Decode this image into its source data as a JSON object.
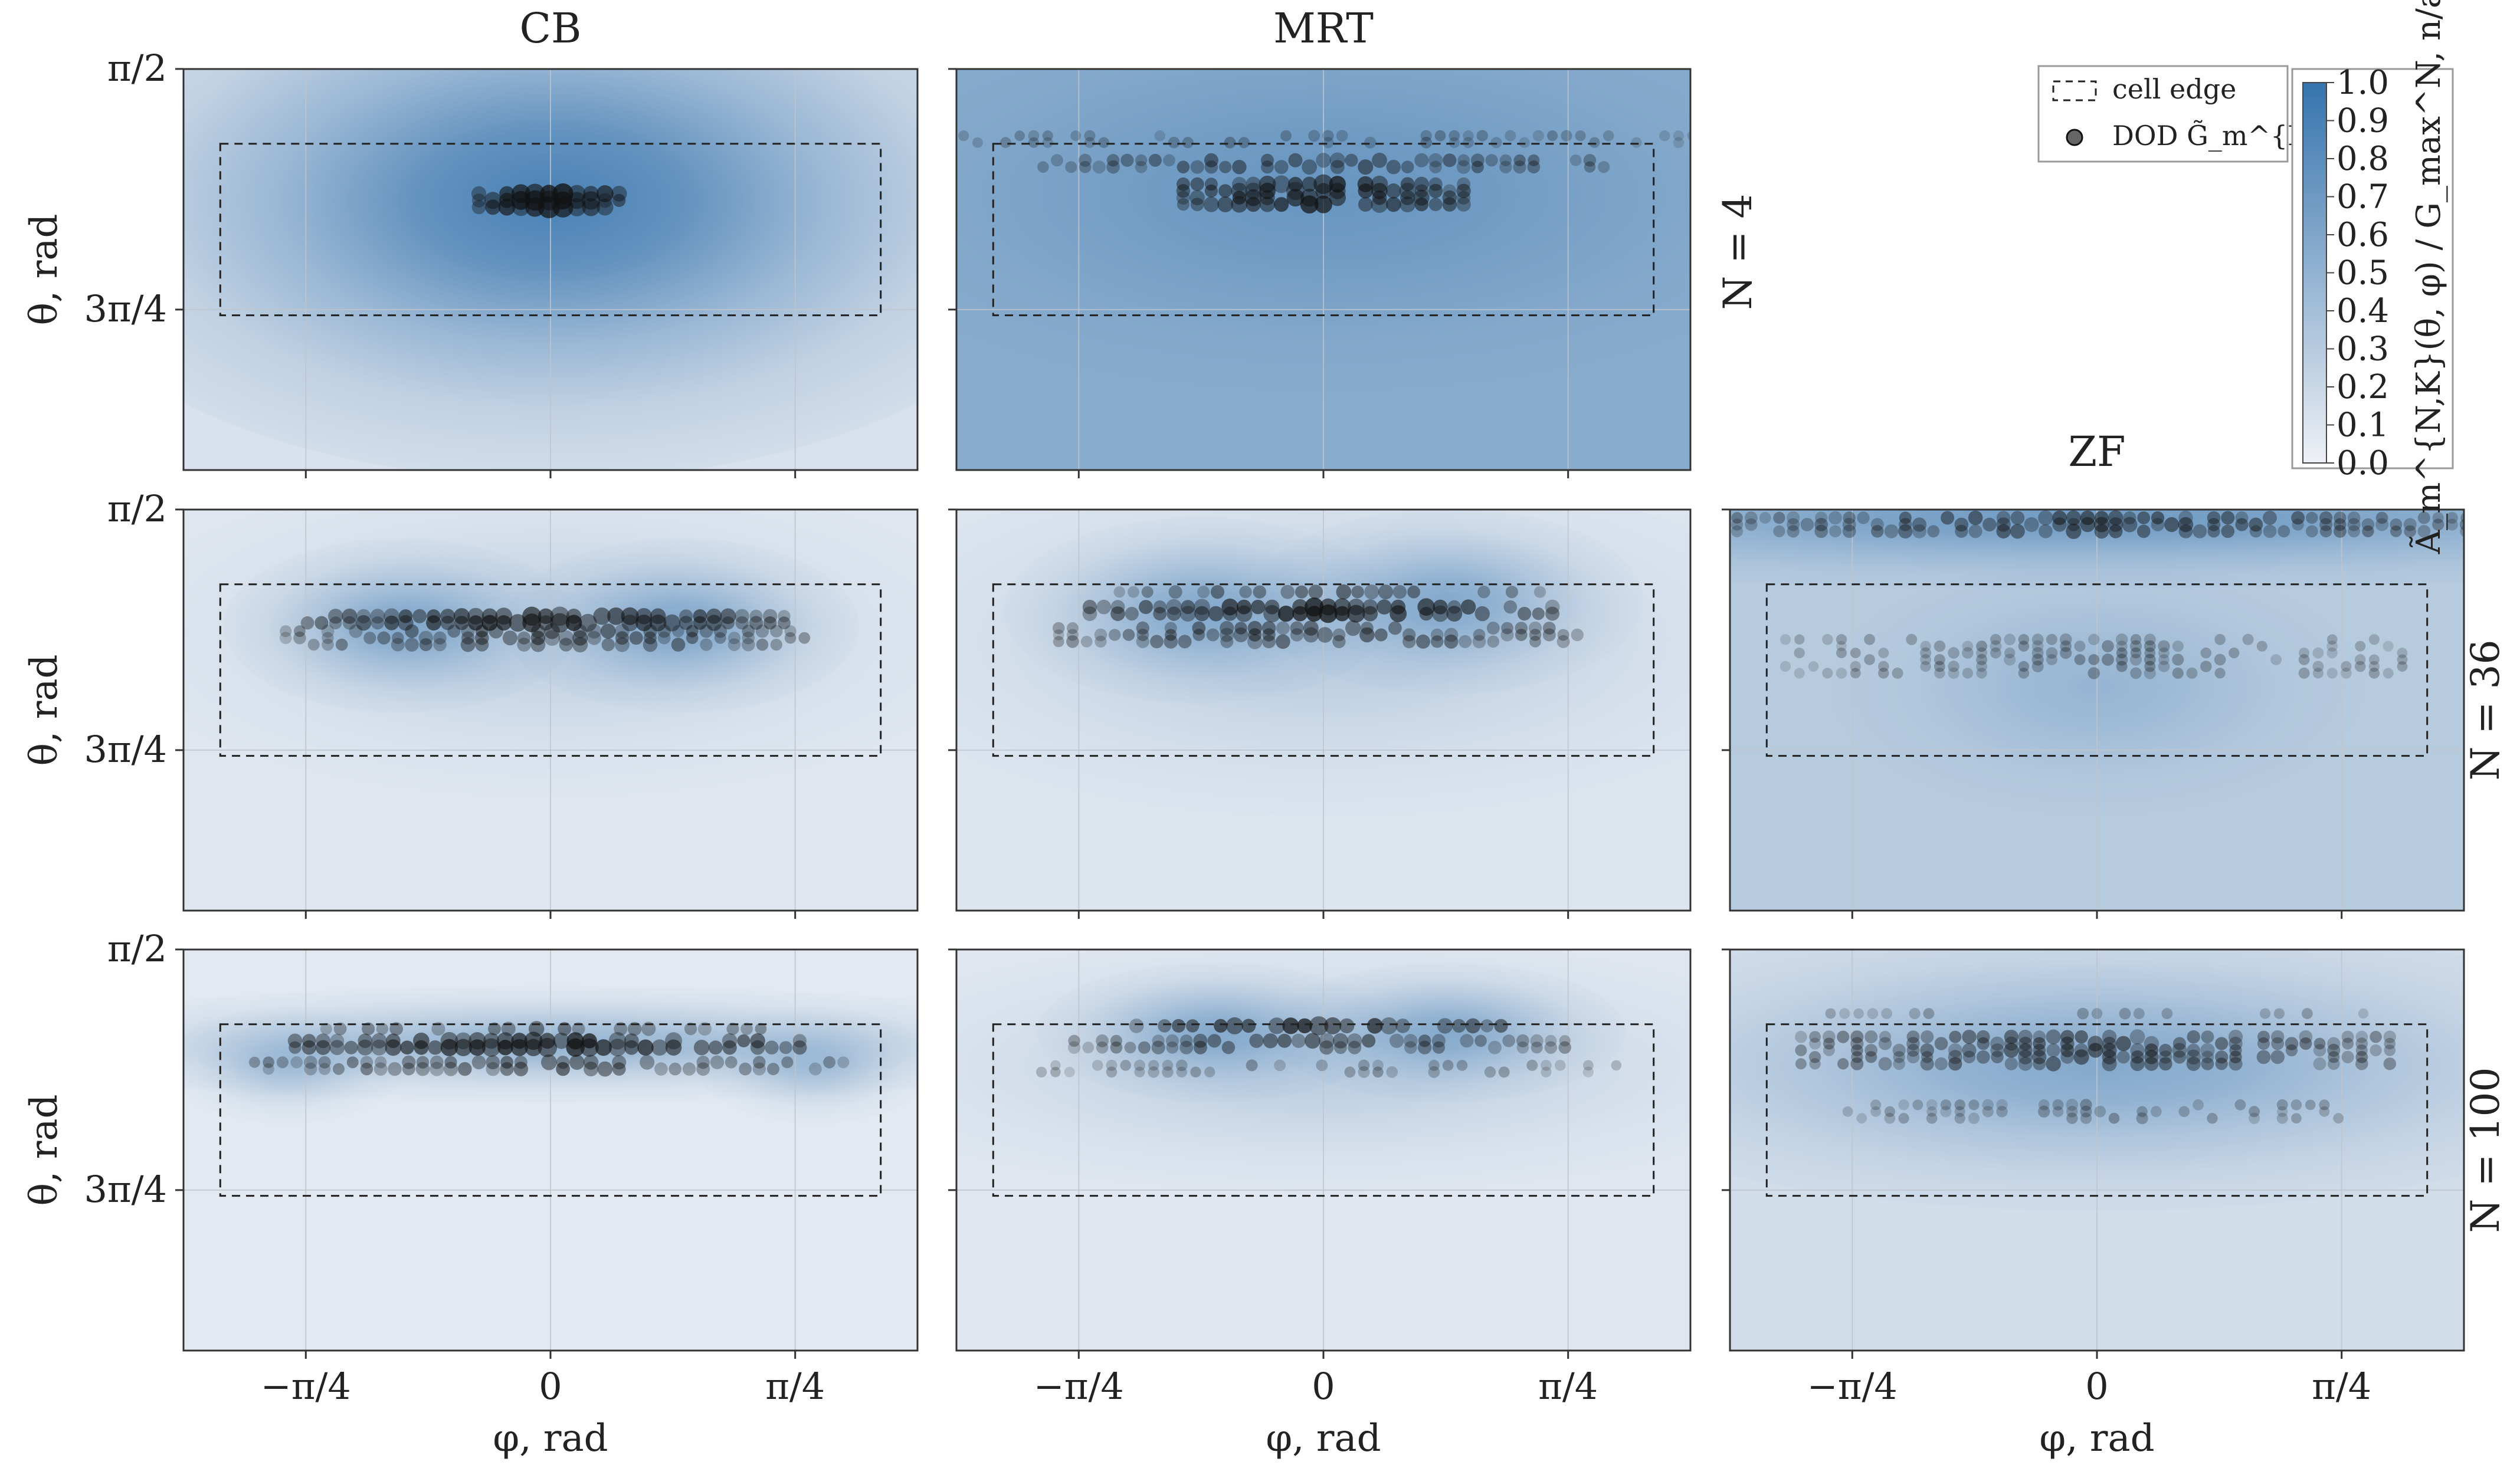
{
  "chart_data": {
    "type": "heatmap",
    "description_note": "",
    "columns": [
      "CB",
      "MRT",
      "ZF"
    ],
    "rows": [
      {
        "label": "N = 4",
        "N": 4
      },
      {
        "label": "N = 36",
        "N": 36
      },
      {
        "label": "N = 100",
        "N": 100
      }
    ],
    "xlabel": "φ, rad",
    "ylabel": "θ, rad",
    "xlim": [
      -1.178,
      1.178
    ],
    "ylim": [
      1.571,
      2.88
    ],
    "x_ticks": [
      {
        "value": -0.7854,
        "label": "−π/4"
      },
      {
        "value": 0,
        "label": "0"
      },
      {
        "value": 0.7854,
        "label": "π/4"
      }
    ],
    "y_ticks": [
      {
        "value": 1.5708,
        "label": "π/2"
      },
      {
        "value": 2.3562,
        "label": "3π/4"
      }
    ],
    "cell_edge": {
      "phi": [
        -1.06,
        1.06
      ],
      "theta": [
        1.815,
        2.375
      ]
    },
    "colorbar": {
      "label": "Ã_m^{N,K}(θ, φ) / G_max^N, n/a",
      "min": 0.0,
      "max": 1.0,
      "ticks": [
        "0.0",
        "0.1",
        "0.2",
        "0.3",
        "0.4",
        "0.5",
        "0.6",
        "0.7",
        "0.8",
        "0.9",
        "1.0"
      ],
      "color_low": "#eef0f5",
      "color_high": "#3674ad"
    },
    "legend": {
      "entries": [
        "cell edge",
        "DOD G̃_m^{N,K}"
      ],
      "placement": "top-right"
    },
    "panels": [
      {
        "id": "CB-4",
        "col": "CB",
        "N": 4,
        "background": 0.12,
        "blobs": [
          {
            "phi": 0.0,
            "theta": 2.0,
            "sphi": 0.9,
            "stheta": 0.48,
            "amp": 0.88
          }
        ],
        "point_bands": [
          {
            "phi_min": -0.23,
            "phi_max": 0.23,
            "theta": 2.0,
            "rows": 3,
            "density": "very-high"
          }
        ]
      },
      {
        "id": "MRT-4",
        "col": "MRT",
        "N": 4,
        "background": 0.55,
        "blobs": [
          {
            "phi": 0.0,
            "theta": 1.98,
            "sphi": 0.9,
            "stheta": 0.35,
            "amp": 0.4
          }
        ],
        "point_bands": [
          {
            "phi_min": -1.2,
            "phi_max": 1.2,
            "theta": 1.8,
            "rows": 2,
            "density": "sparse"
          },
          {
            "phi_min": -0.9,
            "phi_max": 0.9,
            "theta": 1.88,
            "rows": 2,
            "density": "medium"
          },
          {
            "phi_min": -0.45,
            "phi_max": 0.45,
            "theta": 1.98,
            "rows": 4,
            "density": "high"
          }
        ]
      },
      {
        "id": "CB-36",
        "col": "CB",
        "N": 36,
        "background": 0.08,
        "blobs": [
          {
            "phi": -0.48,
            "theta": 1.95,
            "sphi": 0.3,
            "stheta": 0.15,
            "amp": 0.48
          },
          {
            "phi": 0.42,
            "theta": 1.95,
            "sphi": 0.3,
            "stheta": 0.15,
            "amp": 0.48
          },
          {
            "phi": 0.0,
            "theta": 1.98,
            "sphi": 0.75,
            "stheta": 0.28,
            "amp": 0.2
          }
        ],
        "point_bands": [
          {
            "phi_min": -0.78,
            "phi_max": 0.78,
            "theta": 1.93,
            "rows": 2,
            "density": "high"
          },
          {
            "phi_min": -0.85,
            "phi_max": 0.85,
            "theta": 1.99,
            "rows": 3,
            "density": "medium"
          }
        ]
      },
      {
        "id": "MRT-36",
        "col": "MRT",
        "N": 36,
        "background": 0.1,
        "blobs": [
          {
            "phi": -0.4,
            "theta": 1.9,
            "sphi": 0.33,
            "stheta": 0.16,
            "amp": 0.45
          },
          {
            "phi": 0.4,
            "theta": 1.87,
            "sphi": 0.33,
            "stheta": 0.16,
            "amp": 0.45
          },
          {
            "phi": 0.0,
            "theta": 2.0,
            "sphi": 0.8,
            "stheta": 0.3,
            "amp": 0.22
          }
        ],
        "point_bands": [
          {
            "phi_min": -0.7,
            "phi_max": 0.7,
            "theta": 1.84,
            "rows": 1,
            "density": "medium"
          },
          {
            "phi_min": -0.75,
            "phi_max": 0.75,
            "theta": 1.9,
            "rows": 2,
            "density": "high"
          },
          {
            "phi_min": -0.85,
            "phi_max": 0.85,
            "theta": 1.98,
            "rows": 3,
            "density": "medium"
          }
        ]
      },
      {
        "id": "ZF-36",
        "col": "ZF",
        "N": 36,
        "background": 0.3,
        "blobs": [
          {
            "phi": 0.0,
            "theta": 1.6,
            "sphi": 1.5,
            "stheta": 0.12,
            "amp": 0.55
          },
          {
            "phi": 0.0,
            "theta": 2.15,
            "sphi": 0.45,
            "stheta": 0.22,
            "amp": 0.25
          }
        ],
        "point_bands": [
          {
            "phi_min": -1.2,
            "phi_max": 1.2,
            "theta": 1.62,
            "rows": 3,
            "density": "medium"
          },
          {
            "phi_min": -1.0,
            "phi_max": 1.0,
            "theta": 2.05,
            "rows": 6,
            "density": "sparse"
          }
        ]
      },
      {
        "id": "CB-100",
        "col": "CB",
        "N": 100,
        "background": 0.06,
        "blobs": [
          {
            "phi": 0.0,
            "theta": 1.88,
            "sphi": 0.95,
            "stheta": 0.1,
            "amp": 0.45
          },
          {
            "phi": -0.85,
            "theta": 1.95,
            "sphi": 0.2,
            "stheta": 0.1,
            "amp": 0.3
          },
          {
            "phi": 0.85,
            "theta": 1.95,
            "sphi": 0.2,
            "stheta": 0.1,
            "amp": 0.3
          }
        ],
        "point_bands": [
          {
            "phi_min": -0.72,
            "phi_max": 0.72,
            "theta": 1.83,
            "rows": 1,
            "density": "medium"
          },
          {
            "phi_min": -0.82,
            "phi_max": 0.82,
            "theta": 1.88,
            "rows": 2,
            "density": "high"
          },
          {
            "phi_min": -0.95,
            "phi_max": 0.95,
            "theta": 1.95,
            "rows": 2,
            "density": "medium"
          }
        ]
      },
      {
        "id": "MRT-100",
        "col": "MRT",
        "N": 100,
        "background": 0.08,
        "blobs": [
          {
            "phi": -0.35,
            "theta": 1.84,
            "sphi": 0.3,
            "stheta": 0.12,
            "amp": 0.45
          },
          {
            "phi": 0.4,
            "theta": 1.84,
            "sphi": 0.3,
            "stheta": 0.12,
            "amp": 0.45
          },
          {
            "phi": 0.0,
            "theta": 1.95,
            "sphi": 0.85,
            "stheta": 0.22,
            "amp": 0.22
          }
        ],
        "point_bands": [
          {
            "phi_min": -0.6,
            "phi_max": 0.6,
            "theta": 1.82,
            "rows": 1,
            "density": "high"
          },
          {
            "phi_min": -0.8,
            "phi_max": 0.8,
            "theta": 1.88,
            "rows": 2,
            "density": "medium"
          },
          {
            "phi_min": -0.95,
            "phi_max": 0.95,
            "theta": 1.96,
            "rows": 2,
            "density": "sparse"
          }
        ]
      },
      {
        "id": "ZF-100",
        "col": "ZF",
        "N": 100,
        "background": 0.15,
        "blobs": [
          {
            "phi": 0.0,
            "theta": 1.95,
            "sphi": 0.95,
            "stheta": 0.25,
            "amp": 0.5
          }
        ],
        "point_bands": [
          {
            "phi_min": -0.9,
            "phi_max": 0.9,
            "theta": 1.78,
            "rows": 1,
            "density": "sparse"
          },
          {
            "phi_min": -0.95,
            "phi_max": 0.95,
            "theta": 1.9,
            "rows": 5,
            "density": "medium"
          },
          {
            "phi_min": -0.8,
            "phi_max": 0.8,
            "theta": 2.1,
            "rows": 3,
            "density": "sparse"
          }
        ]
      }
    ]
  }
}
